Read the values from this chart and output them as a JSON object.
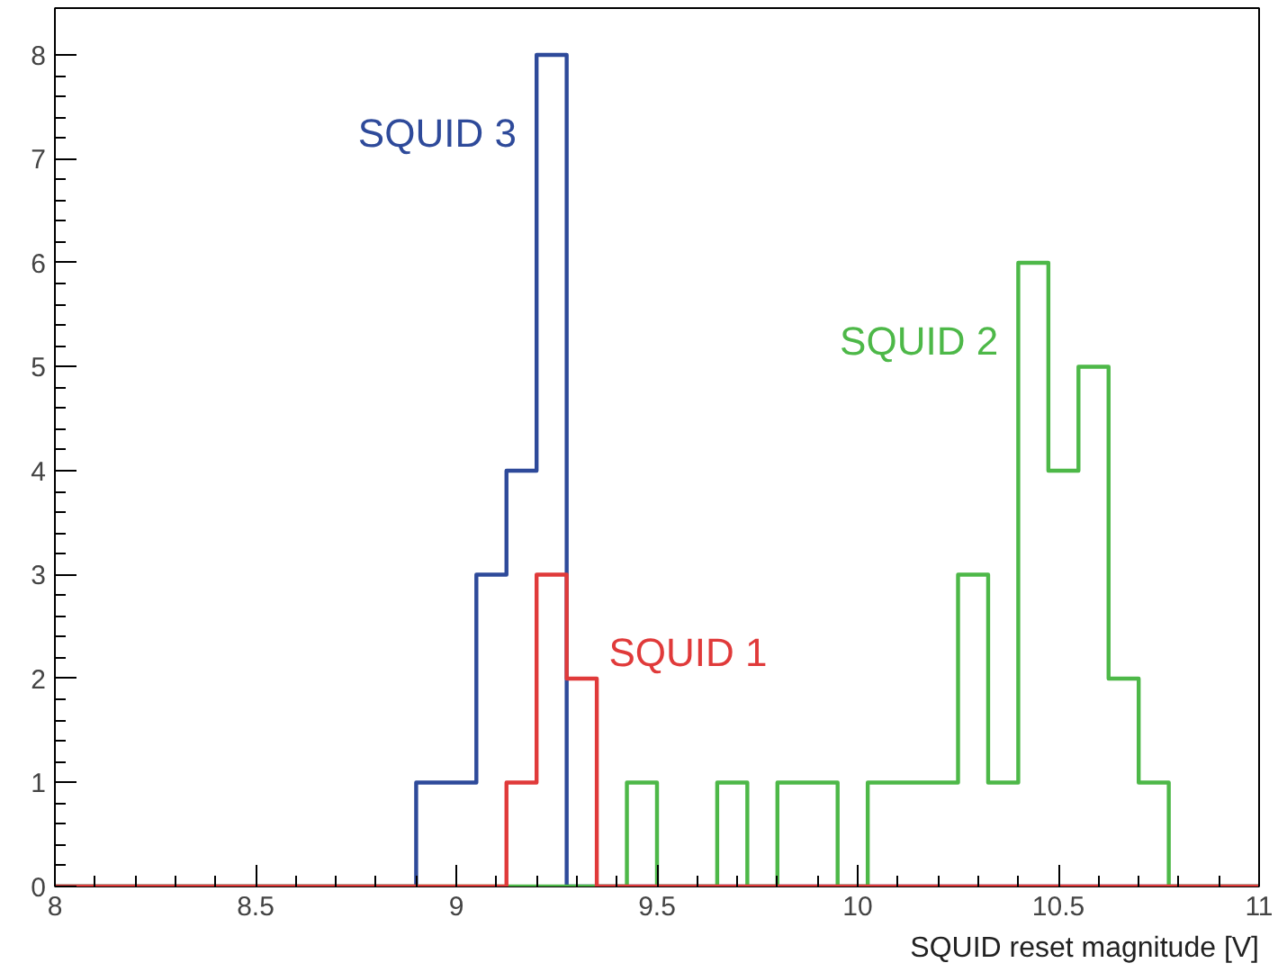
{
  "chart_data": {
    "type": "histogram",
    "xlabel": "SQUID reset magnitude [V]",
    "bins": [
      8,
      8.075,
      8.15,
      8.225,
      8.3,
      8.375,
      8.45,
      8.525,
      8.6,
      8.675,
      8.75,
      8.825,
      8.9,
      8.975,
      9.05,
      9.125,
      9.2,
      9.275,
      9.35,
      9.425,
      9.5,
      9.575,
      9.65,
      9.725,
      9.8,
      9.875,
      9.95,
      10.025,
      10.1,
      10.175,
      10.25,
      10.325,
      10.4,
      10.475,
      10.55,
      10.625,
      10.7,
      10.775,
      10.85,
      10.925,
      11
    ],
    "series": [
      {
        "name": "SQUID 3",
        "color": "#2e4a9a",
        "values": [
          0,
          0,
          0,
          0,
          0,
          0,
          0,
          0,
          0,
          0,
          0,
          0,
          1,
          1,
          3,
          4,
          8,
          0,
          0,
          0,
          0,
          0,
          0,
          0,
          0,
          0,
          0,
          0,
          0,
          0,
          0,
          0,
          0,
          0,
          0,
          0,
          0,
          0,
          0,
          0
        ]
      },
      {
        "name": "SQUID 2",
        "color": "#4db848",
        "values": [
          0,
          0,
          0,
          0,
          0,
          0,
          0,
          0,
          0,
          0,
          0,
          0,
          0,
          0,
          0,
          0,
          0,
          0,
          0,
          1,
          0,
          0,
          1,
          0,
          1,
          1,
          0,
          1,
          1,
          1,
          3,
          1,
          6,
          4,
          5,
          2,
          1,
          0,
          0,
          0
        ]
      },
      {
        "name": "SQUID 1",
        "color": "#e03a3a",
        "values": [
          0,
          0,
          0,
          0,
          0,
          0,
          0,
          0,
          0,
          0,
          0,
          0,
          0,
          0,
          0,
          1,
          3,
          2,
          0,
          0,
          0,
          0,
          0,
          0,
          0,
          0,
          0,
          0,
          0,
          0,
          0,
          0,
          0,
          0,
          0,
          0,
          0,
          0,
          0,
          0
        ]
      }
    ],
    "xlim": [
      8,
      11
    ],
    "ylim": [
      0,
      8.45
    ],
    "xticks": [
      8,
      8.5,
      9,
      9.5,
      10,
      10.5,
      11
    ],
    "yticks": [
      0,
      1,
      2,
      3,
      4,
      5,
      6,
      7,
      8
    ],
    "grid": false,
    "legend": false
  }
}
